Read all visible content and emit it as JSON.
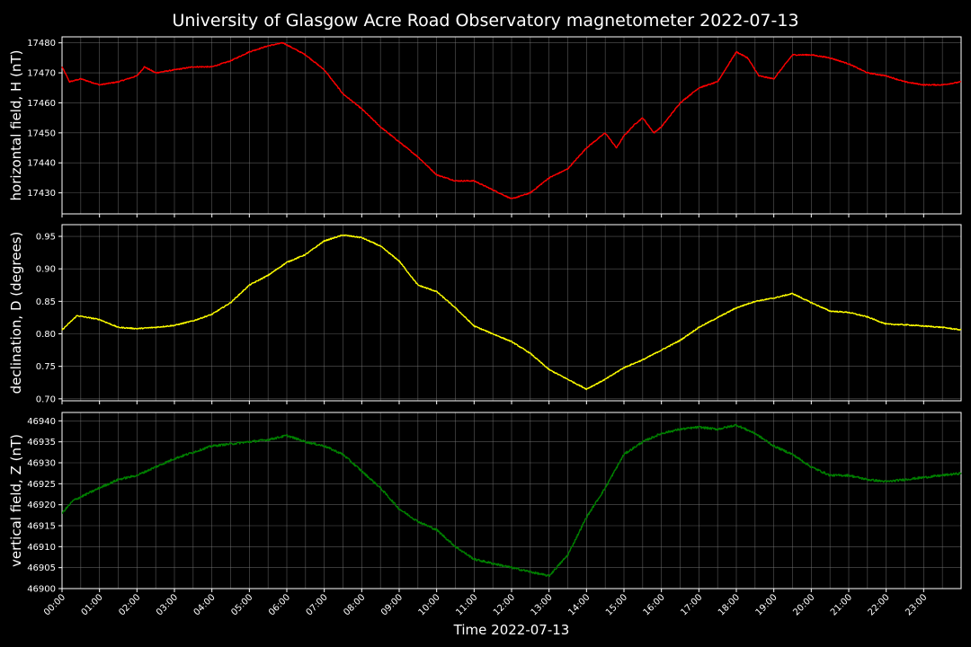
{
  "colors": {
    "background": "#000000",
    "text": "#ffffff",
    "grid": "#777777",
    "axes": "#ffffff",
    "h": "#ff0000",
    "d": "#ffff00",
    "z": "#008000"
  },
  "chart_data": {
    "type": "line",
    "title": "University of Glasgow Acre Road Observatory magnetometer 2022-07-13",
    "xlabel": "Time 2022-07-13",
    "x_ticks": [
      "00:00",
      "01:00",
      "02:00",
      "03:00",
      "04:00",
      "05:00",
      "06:00",
      "07:00",
      "08:00",
      "09:00",
      "10:00",
      "11:00",
      "12:00",
      "13:00",
      "14:00",
      "15:00",
      "16:00",
      "17:00",
      "18:00",
      "19:00",
      "20:00",
      "21:00",
      "22:00",
      "23:00"
    ],
    "xlim_hours": [
      0,
      24
    ],
    "grid": true,
    "panels": [
      {
        "key": "h",
        "ylabel": "horizontal field, H (nT)",
        "ylim": [
          17423,
          17482
        ],
        "yticks": [
          "17430",
          "17440",
          "17450",
          "17460",
          "17470",
          "17480"
        ],
        "series": [
          {
            "x": [
              0,
              0.2,
              0.5,
              1,
              1.5,
              2,
              2.2,
              2.5,
              3,
              3.5,
              4,
              4.5,
              5,
              5.5,
              5.9,
              6.5,
              7,
              7.5,
              8,
              8.5,
              9,
              9.5,
              10,
              10.5,
              11,
              11.5,
              12,
              12.5,
              13,
              13.5,
              14,
              14.5,
              14.8,
              15,
              15.3,
              15.5,
              15.8,
              16,
              16.5,
              17,
              17.5,
              18,
              18.3,
              18.6,
              19,
              19.5,
              20,
              20.5,
              21,
              21.5,
              22,
              22.5,
              23,
              23.5,
              24
            ],
            "y": [
              17472,
              17467,
              17468,
              17466,
              17467,
              17469,
              17472,
              17470,
              17471,
              17472,
              17472,
              17474,
              17477,
              17479,
              17480,
              17476,
              17471,
              17463,
              17458,
              17452,
              17447,
              17442,
              17436,
              17434,
              17434,
              17431,
              17428,
              17430,
              17435,
              17438,
              17445,
              17450,
              17445,
              17449,
              17453,
              17455,
              17450,
              17452,
              17460,
              17465,
              17467,
              17477,
              17475,
              17469,
              17468,
              17476,
              17476,
              17475,
              17473,
              17470,
              17469,
              17467,
              17466,
              17466,
              17467
            ]
          }
        ]
      },
      {
        "key": "d",
        "ylabel": "declination, D (degrees)",
        "ylim": [
          0.697,
          0.968
        ],
        "yticks": [
          "0.70",
          "0.75",
          "0.80",
          "0.85",
          "0.90",
          "0.95"
        ],
        "series": [
          {
            "x": [
              0,
              0.4,
              1,
              1.5,
              2,
              2.5,
              3,
              3.5,
              4,
              4.5,
              5,
              5.5,
              6,
              6.5,
              7,
              7.5,
              8,
              8.5,
              9,
              9.5,
              10,
              10.5,
              11,
              11.5,
              12,
              12.5,
              13,
              13.5,
              14,
              14.5,
              15,
              15.5,
              16,
              16.5,
              17,
              17.5,
              18,
              18.5,
              19,
              19.5,
              20,
              20.5,
              21,
              21.5,
              22,
              22.5,
              23,
              23.5,
              24
            ],
            "y": [
              0.806,
              0.828,
              0.822,
              0.81,
              0.808,
              0.81,
              0.813,
              0.82,
              0.83,
              0.848,
              0.875,
              0.89,
              0.91,
              0.922,
              0.943,
              0.952,
              0.948,
              0.935,
              0.912,
              0.875,
              0.865,
              0.84,
              0.812,
              0.8,
              0.788,
              0.77,
              0.745,
              0.73,
              0.715,
              0.73,
              0.748,
              0.76,
              0.775,
              0.79,
              0.81,
              0.825,
              0.84,
              0.85,
              0.855,
              0.862,
              0.848,
              0.835,
              0.833,
              0.826,
              0.815,
              0.814,
              0.812,
              0.81,
              0.806
            ]
          }
        ]
      },
      {
        "key": "z",
        "ylabel": "vertical field, Z (nT)",
        "ylim": [
          46900,
          46942
        ],
        "yticks": [
          "46900",
          "46905",
          "46910",
          "46915",
          "46920",
          "46925",
          "46930",
          "46935",
          "46940"
        ],
        "series": [
          {
            "x": [
              0,
              0.3,
              1,
              1.5,
              2,
              2.5,
              3,
              3.5,
              4,
              4.5,
              5,
              5.5,
              6,
              6.5,
              7,
              7.5,
              8,
              8.5,
              9,
              9.5,
              10,
              10.5,
              11,
              11.5,
              12,
              12.5,
              13,
              13.5,
              14,
              14.5,
              15,
              15.5,
              16,
              16.5,
              17,
              17.5,
              18,
              18.5,
              19,
              19.5,
              20,
              20.5,
              21,
              21.5,
              22,
              22.5,
              23,
              23.5,
              24
            ],
            "y": [
              46918,
              46921,
              46924,
              46926,
              46927,
              46929,
              46931,
              46932.5,
              46934,
              46934.5,
              46935,
              46935.5,
              46936.5,
              46935,
              46934,
              46932,
              46928,
              46924,
              46919,
              46916,
              46914,
              46910,
              46907,
              46906,
              46905,
              46904,
              46903,
              46908,
              46917,
              46924,
              46932,
              46935,
              46937,
              46938,
              46938.5,
              46938,
              46939,
              46937,
              46934,
              46932,
              46929,
              46927,
              46927,
              46926,
              46925.5,
              46926,
              46926.5,
              46927,
              46927.5
            ]
          }
        ]
      }
    ]
  }
}
